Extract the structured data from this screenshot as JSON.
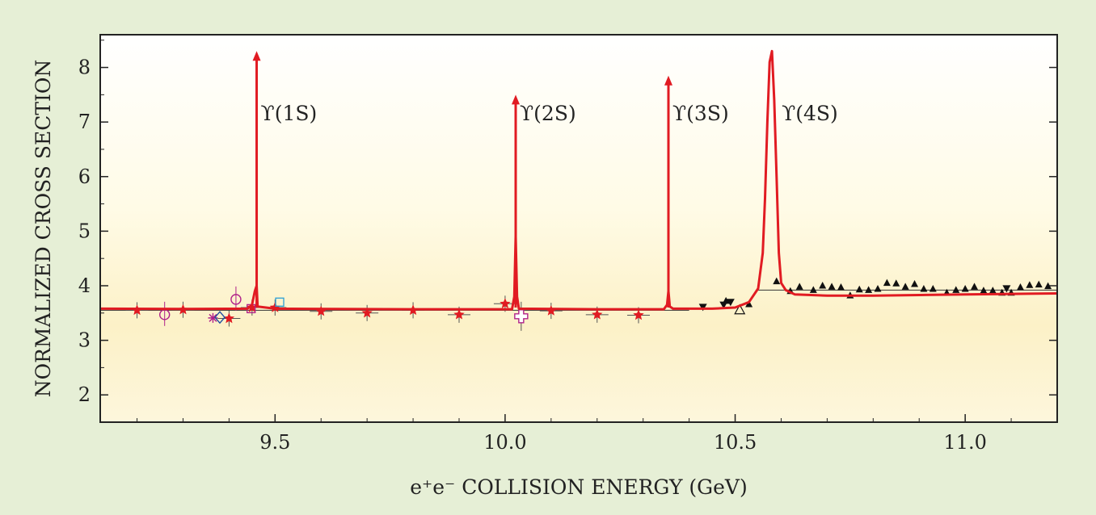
{
  "chart_data": {
    "type": "line",
    "xlabel": "e⁺e⁻  COLLISION ENERGY (GeV)",
    "ylabel": "NORMALIZED CROSS SECTION",
    "xlim": [
      9.12,
      11.2
    ],
    "ylim": [
      1.5,
      8.6
    ],
    "x_ticks": [
      9.5,
      10.0,
      10.5,
      11.0
    ],
    "x_tick_labels": [
      "9.5",
      "10.0",
      "10.5",
      "11.0"
    ],
    "y_ticks": [
      2,
      3,
      4,
      5,
      6,
      7,
      8
    ],
    "y_tick_labels": [
      "2",
      "3",
      "4",
      "5",
      "6",
      "7",
      "8"
    ],
    "grid": false,
    "peaks": [
      {
        "label": "ϒ(1S)",
        "x": 9.46,
        "y_top": 8.3
      },
      {
        "label": "ϒ(2S)",
        "x": 10.023,
        "y_top": 7.5
      },
      {
        "label": "ϒ(3S)",
        "x": 10.355,
        "y_top": 7.85
      },
      {
        "label": "ϒ(4S)",
        "x": 10.58,
        "y_top": 8.3
      }
    ],
    "curve": {
      "color": "#e11b22",
      "x": [
        9.12,
        9.3,
        9.44,
        9.45,
        9.456,
        9.46,
        9.462,
        9.5,
        9.8,
        10.015,
        10.02,
        10.023,
        10.026,
        10.03,
        10.2,
        10.345,
        10.352,
        10.355,
        10.358,
        10.365,
        10.45,
        10.5,
        10.53,
        10.55,
        10.56,
        10.565,
        10.57,
        10.575,
        10.58,
        10.585,
        10.59,
        10.595,
        10.6,
        10.61,
        10.63,
        10.7,
        10.8,
        10.9,
        11.0,
        11.1,
        11.2
      ],
      "y": [
        3.58,
        3.575,
        3.58,
        3.65,
        3.9,
        4.0,
        3.62,
        3.58,
        3.57,
        3.57,
        3.8,
        4.9,
        3.8,
        3.58,
        3.57,
        3.57,
        3.65,
        3.9,
        3.62,
        3.58,
        3.58,
        3.6,
        3.7,
        3.95,
        4.6,
        5.6,
        7.0,
        8.1,
        8.3,
        7.4,
        6.0,
        4.6,
        4.05,
        3.92,
        3.84,
        3.82,
        3.82,
        3.83,
        3.84,
        3.85,
        3.86
      ]
    },
    "stars": {
      "color": "#e11b22",
      "points": [
        [
          9.2,
          3.55
        ],
        [
          9.3,
          3.56
        ],
        [
          9.4,
          3.4
        ],
        [
          9.45,
          3.6
        ],
        [
          9.5,
          3.6
        ],
        [
          9.6,
          3.53
        ],
        [
          9.7,
          3.5
        ],
        [
          9.8,
          3.55
        ],
        [
          9.9,
          3.47
        ],
        [
          10.0,
          3.67
        ],
        [
          10.1,
          3.54
        ],
        [
          10.2,
          3.47
        ],
        [
          10.29,
          3.46
        ]
      ]
    },
    "triangles_up": {
      "color": "#111111",
      "points": [
        [
          10.48,
          3.72
        ],
        [
          10.53,
          3.66
        ],
        [
          10.59,
          4.08
        ],
        [
          10.62,
          3.9
        ],
        [
          10.64,
          3.98
        ],
        [
          10.67,
          3.92
        ],
        [
          10.69,
          4.0
        ],
        [
          10.71,
          3.98
        ],
        [
          10.73,
          3.97
        ],
        [
          10.75,
          3.82
        ],
        [
          10.77,
          3.93
        ],
        [
          10.79,
          3.92
        ],
        [
          10.81,
          3.94
        ],
        [
          10.83,
          4.05
        ],
        [
          10.85,
          4.04
        ],
        [
          10.87,
          3.98
        ],
        [
          10.89,
          4.03
        ],
        [
          10.91,
          3.94
        ],
        [
          10.93,
          3.94
        ],
        [
          10.96,
          3.87
        ],
        [
          10.98,
          3.92
        ],
        [
          11.0,
          3.94
        ],
        [
          11.02,
          3.98
        ],
        [
          11.04,
          3.91
        ],
        [
          11.06,
          3.91
        ],
        [
          11.08,
          3.87
        ],
        [
          11.1,
          3.87
        ],
        [
          11.12,
          3.97
        ],
        [
          11.14,
          4.01
        ],
        [
          11.16,
          4.02
        ],
        [
          11.18,
          3.99
        ]
      ]
    },
    "triangles_down": {
      "color": "#111111",
      "points": [
        [
          10.43,
          3.61
        ],
        [
          10.475,
          3.65
        ],
        [
          10.49,
          3.7
        ],
        [
          11.09,
          3.95
        ]
      ]
    },
    "open_triangles": {
      "color": "#111111",
      "points": [
        [
          10.51,
          3.56
        ]
      ]
    },
    "other_markers": [
      {
        "shape": "circle",
        "color": "#b0208a",
        "x": 9.26,
        "y": 3.47
      },
      {
        "shape": "circle",
        "color": "#b0208a",
        "x": 9.415,
        "y": 3.75
      },
      {
        "shape": "asterisk",
        "color": "#b0208a",
        "x": 9.365,
        "y": 3.41
      },
      {
        "shape": "diamond",
        "color": "#1f4fa0",
        "x": 9.38,
        "y": 3.42
      },
      {
        "shape": "square",
        "color": "#2a9fd6",
        "x": 9.51,
        "y": 3.7
      },
      {
        "shape": "square",
        "color": "#b0208a",
        "x": 9.448,
        "y": 3.58
      },
      {
        "shape": "cross",
        "color": "#b0208a",
        "x": 10.035,
        "y": 3.44
      }
    ],
    "reference_lines": [
      {
        "color": "#333333",
        "x": [
          9.12,
          10.4
        ],
        "y": [
          3.55,
          3.55
        ]
      },
      {
        "color": "#333333",
        "x": [
          10.55,
          11.2
        ],
        "y": [
          3.92,
          3.92
        ]
      }
    ]
  }
}
